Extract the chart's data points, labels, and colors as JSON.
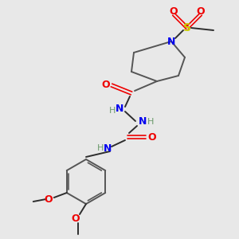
{
  "bg_color": "#e8e8e8",
  "atom_colors": {
    "C": "#2d2d2d",
    "N": "#0000ee",
    "O": "#ee0000",
    "S": "#cccc00",
    "H": "#6a9a6a"
  },
  "bond_color": "#2d2d2d",
  "ring_bond_color": "#555555"
}
